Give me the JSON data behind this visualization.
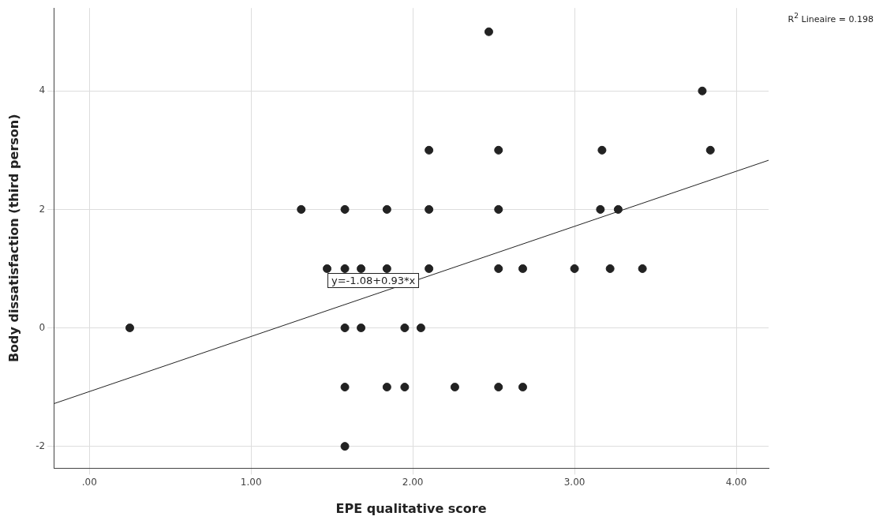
{
  "chart_data": {
    "type": "scatter",
    "xlabel": "EPE qualitative score",
    "ylabel": "Body dissatisfaction (third person)",
    "xlim": [
      -0.22,
      4.2
    ],
    "ylim": [
      -2.37,
      5.4
    ],
    "xticks": [
      {
        "value": 0,
        "label": ".00"
      },
      {
        "value": 1,
        "label": "1.00"
      },
      {
        "value": 2,
        "label": "2.00"
      },
      {
        "value": 3,
        "label": "3.00"
      },
      {
        "value": 4,
        "label": "4.00"
      }
    ],
    "yticks": [
      -2,
      0,
      2,
      4
    ],
    "grid": true,
    "legend": false,
    "marker": "circle",
    "series": [
      {
        "color": "#222222",
        "x": [
          0.25,
          1.31,
          1.58,
          1.84,
          2.1,
          1.47,
          1.58,
          1.68,
          1.84,
          2.1,
          2.1,
          1.58,
          1.68,
          1.95,
          2.05,
          1.58,
          1.84,
          1.95,
          2.26,
          2.53,
          2.68,
          1.58,
          2.47,
          2.53,
          2.53,
          2.53,
          2.68,
          3.0,
          3.22,
          3.42,
          3.17,
          3.16,
          3.27,
          3.79,
          3.84
        ],
        "values": [
          0,
          2,
          2,
          2,
          2,
          1,
          1,
          1,
          1,
          1,
          3,
          0,
          0,
          0,
          0,
          -1,
          -1,
          -1,
          -1,
          -1,
          -1,
          -2,
          5,
          3,
          2,
          1,
          1,
          1,
          1,
          1,
          3,
          2,
          2,
          4,
          3
        ]
      },
      {
        "type": "line",
        "marker": "none",
        "color": "#222222",
        "x": [
          -0.22,
          4.2
        ],
        "values": [
          -1.28,
          2.83
        ]
      }
    ],
    "annotations": [
      "R$^{2}$ Lineaire = 0.198",
      "y=-1.08+0.93*x"
    ]
  }
}
